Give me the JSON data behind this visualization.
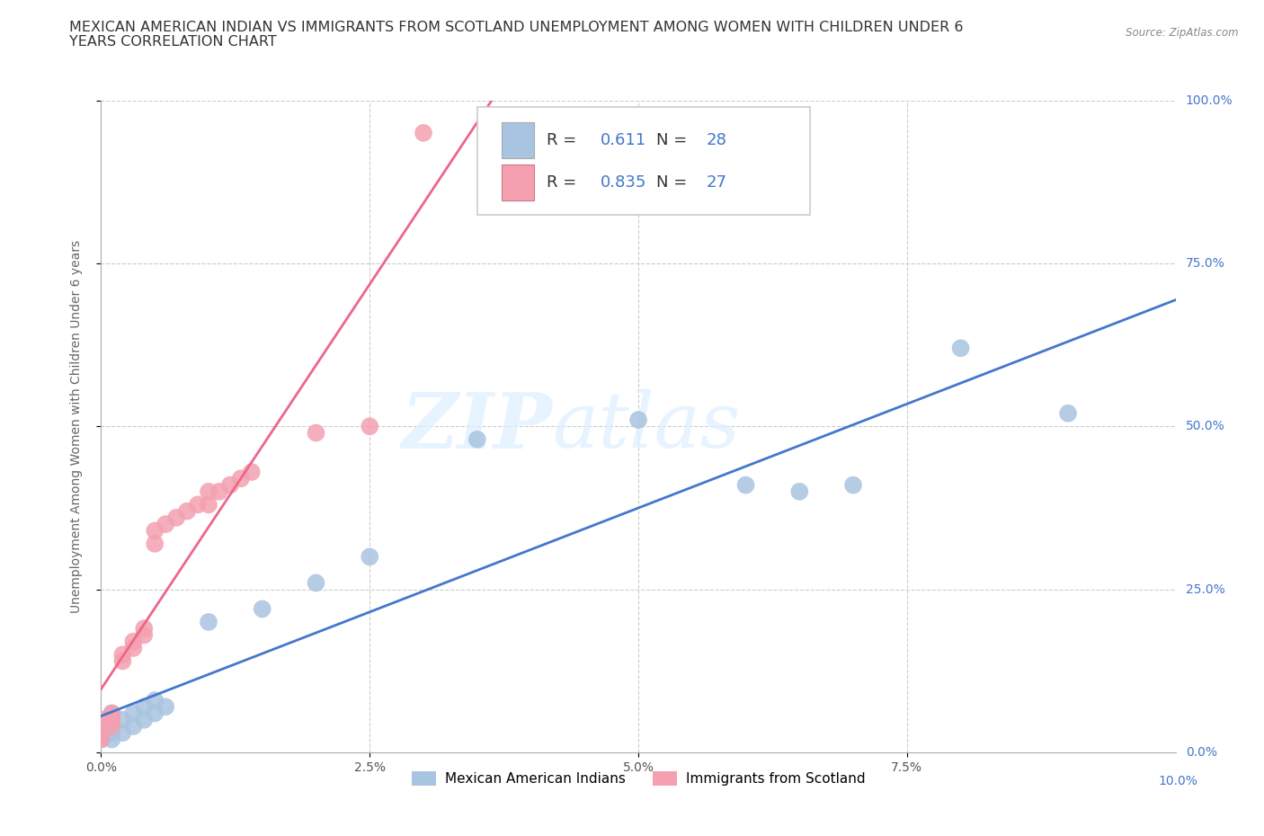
{
  "title_line1": "MEXICAN AMERICAN INDIAN VS IMMIGRANTS FROM SCOTLAND UNEMPLOYMENT AMONG WOMEN WITH CHILDREN UNDER 6",
  "title_line2": "YEARS CORRELATION CHART",
  "source": "Source: ZipAtlas.com",
  "ylabel": "Unemployment Among Women with Children Under 6 years",
  "xlabel_ticks": [
    "0.0%",
    "2.5%",
    "5.0%",
    "7.5%",
    "10.0%"
  ],
  "xlabel_vals": [
    0.0,
    0.025,
    0.05,
    0.075,
    0.1
  ],
  "ylabel_ticks": [
    "0.0%",
    "25.0%",
    "50.0%",
    "75.0%",
    "100.0%"
  ],
  "ylabel_vals": [
    0.0,
    0.25,
    0.5,
    0.75,
    1.0
  ],
  "xlim": [
    0.0,
    0.1
  ],
  "ylim": [
    0.0,
    1.0
  ],
  "blue_x": [
    0.0,
    0.0,
    0.0,
    0.001,
    0.001,
    0.001,
    0.001,
    0.001,
    0.002,
    0.002,
    0.003,
    0.003,
    0.004,
    0.004,
    0.005,
    0.005,
    0.006,
    0.01,
    0.015,
    0.02,
    0.025,
    0.035,
    0.05,
    0.06,
    0.065,
    0.07,
    0.08,
    0.09
  ],
  "blue_y": [
    0.02,
    0.03,
    0.04,
    0.02,
    0.03,
    0.04,
    0.05,
    0.06,
    0.03,
    0.05,
    0.04,
    0.06,
    0.05,
    0.07,
    0.06,
    0.08,
    0.07,
    0.2,
    0.22,
    0.26,
    0.3,
    0.48,
    0.51,
    0.41,
    0.4,
    0.41,
    0.62,
    0.52
  ],
  "pink_x": [
    0.0,
    0.0,
    0.0,
    0.001,
    0.001,
    0.001,
    0.002,
    0.002,
    0.003,
    0.003,
    0.004,
    0.004,
    0.005,
    0.005,
    0.006,
    0.007,
    0.008,
    0.009,
    0.01,
    0.01,
    0.011,
    0.012,
    0.013,
    0.014,
    0.02,
    0.025,
    0.03
  ],
  "pink_y": [
    0.02,
    0.03,
    0.05,
    0.04,
    0.05,
    0.06,
    0.14,
    0.15,
    0.16,
    0.17,
    0.18,
    0.19,
    0.32,
    0.34,
    0.35,
    0.36,
    0.37,
    0.38,
    0.38,
    0.4,
    0.4,
    0.41,
    0.42,
    0.43,
    0.49,
    0.5,
    0.95
  ],
  "blue_color": "#a8c4e0",
  "pink_color": "#f4a0b0",
  "blue_line_color": "#4477cc",
  "pink_line_color": "#ee6688",
  "R_blue": 0.611,
  "N_blue": 28,
  "R_pink": 0.835,
  "N_pink": 27,
  "watermark_zip": "ZIP",
  "watermark_atlas": "atlas",
  "legend_blue_label": "Mexican American Indians",
  "legend_pink_label": "Immigrants from Scotland",
  "background_color": "#ffffff",
  "grid_color": "#cccccc",
  "title_fontsize": 11.5,
  "axis_label_fontsize": 10,
  "tick_fontsize": 10
}
